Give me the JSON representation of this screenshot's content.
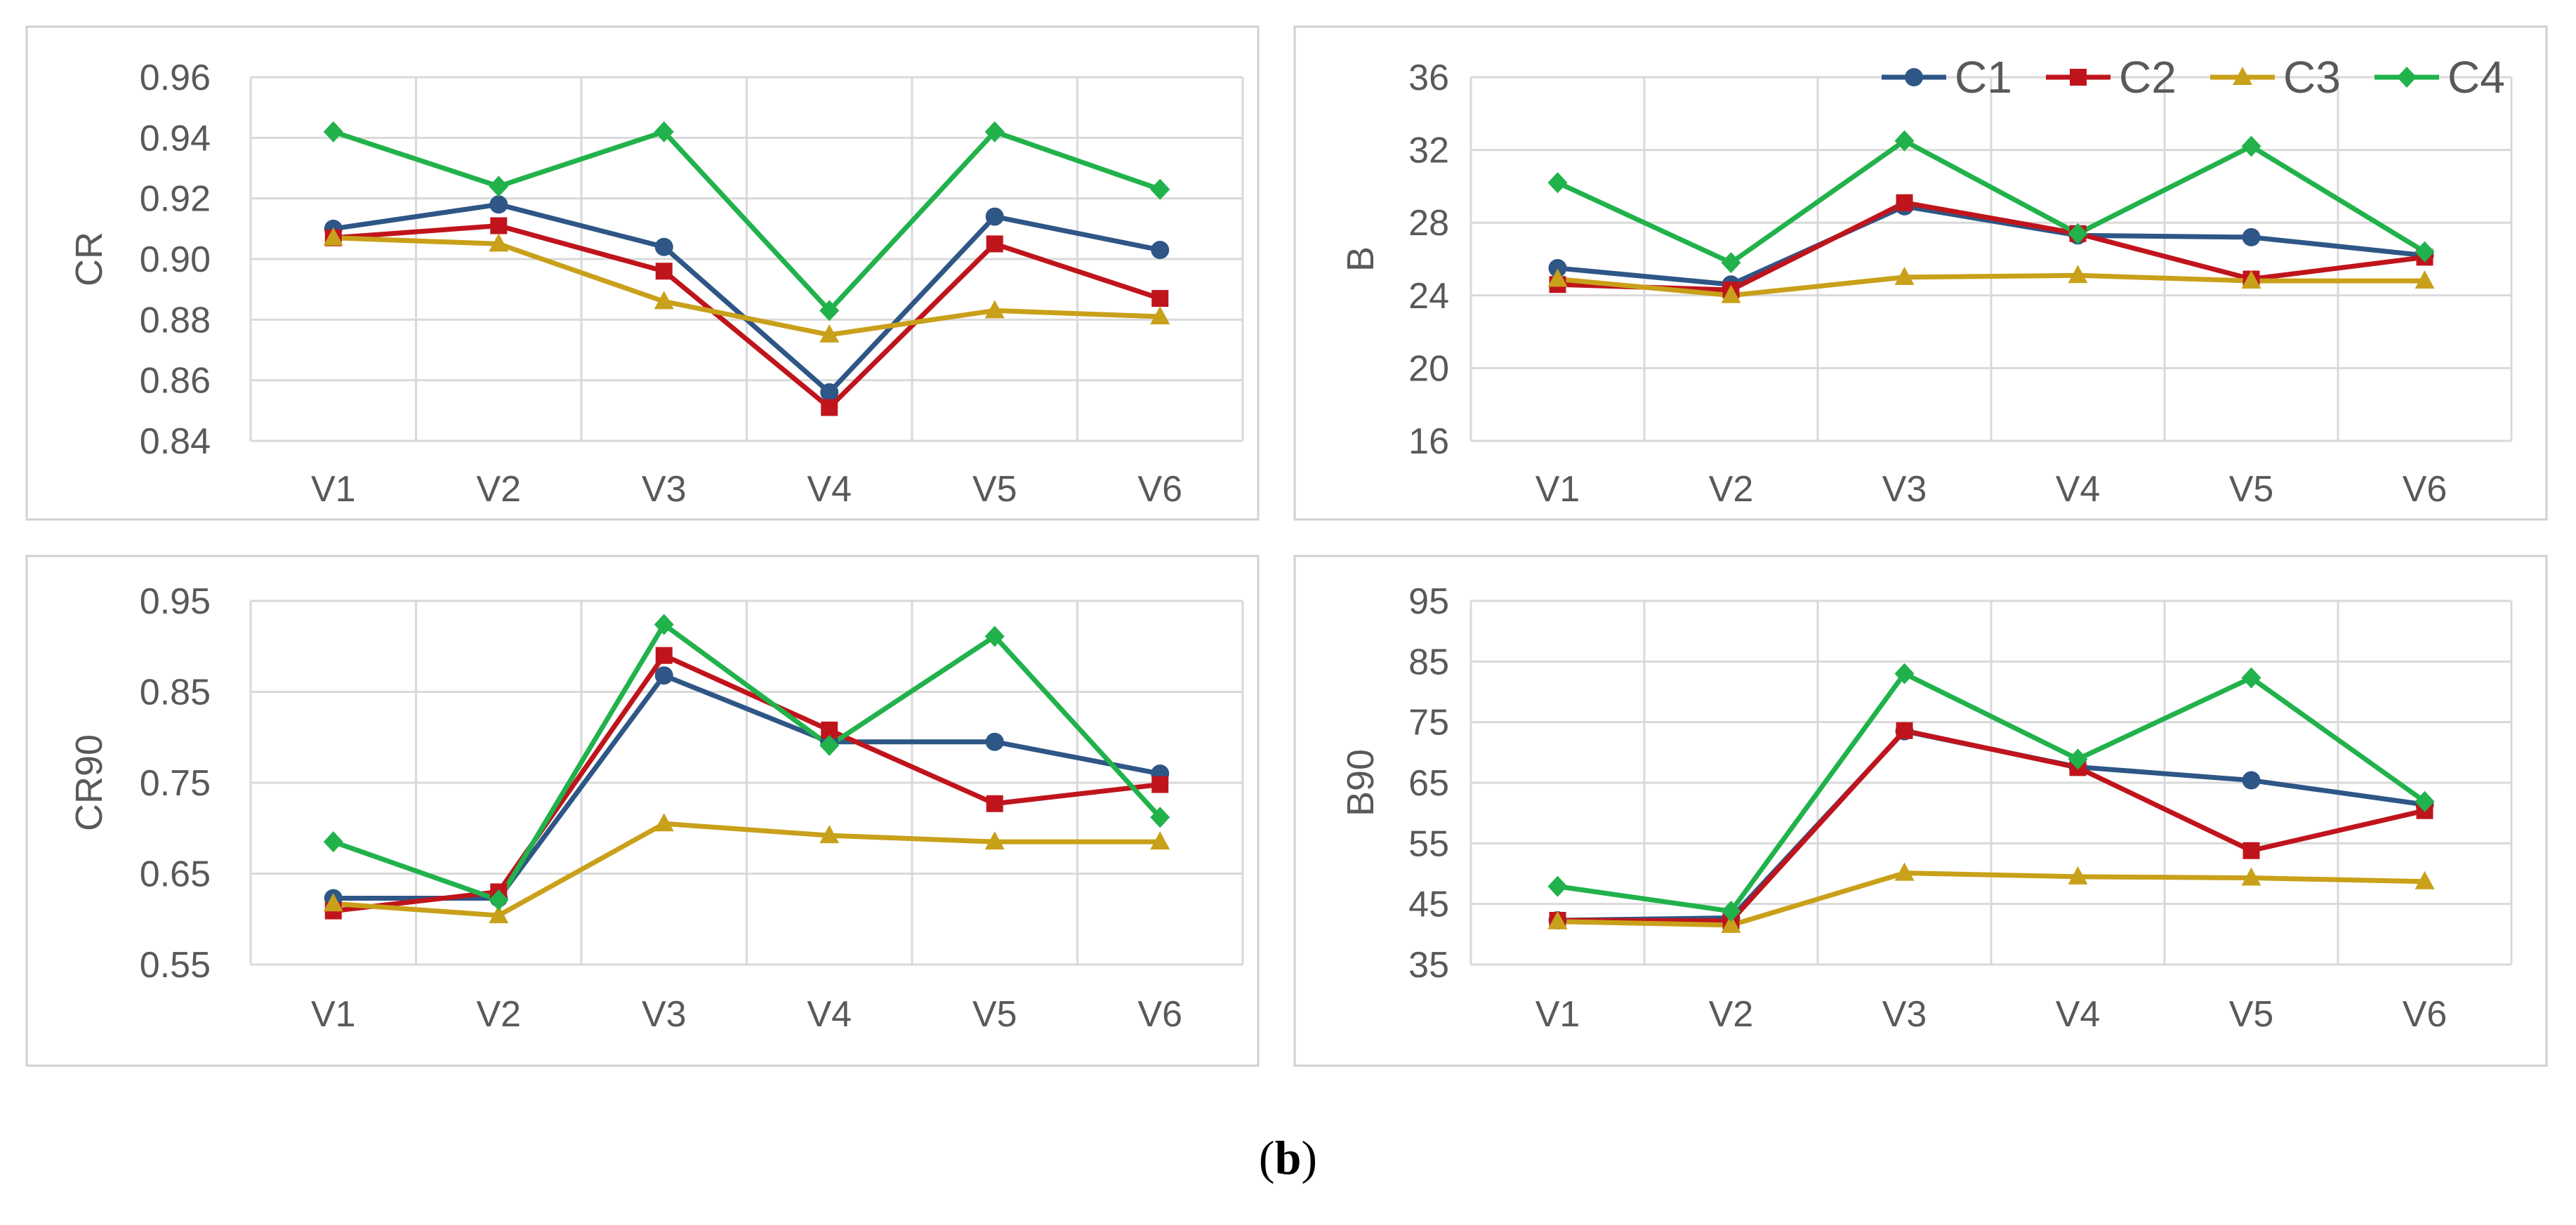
{
  "caption": {
    "open": "(",
    "letter": "b",
    "close": ")"
  },
  "legend": {
    "entries": [
      {
        "name": "C1",
        "color": "#2e5686",
        "marker": "circle"
      },
      {
        "name": "C2",
        "color": "#c0141c",
        "marker": "square"
      },
      {
        "name": "C3",
        "color": "#c9a01a",
        "marker": "triangle"
      },
      {
        "name": "C4",
        "color": "#21b24b",
        "marker": "diamond"
      }
    ]
  },
  "chart_data": [
    {
      "type": "line",
      "title": "",
      "xlabel": "",
      "ylabel": "CR",
      "categories": [
        "V1",
        "V2",
        "V3",
        "V4",
        "V5",
        "V6"
      ],
      "ylim": [
        0.84,
        0.96
      ],
      "yticks": [
        0.84,
        0.86,
        0.88,
        0.9,
        0.92,
        0.94,
        0.96
      ],
      "tick_decimals": 2,
      "grid": true,
      "legend_position": "none",
      "series": [
        {
          "name": "C1",
          "values": [
            0.91,
            0.918,
            0.904,
            0.856,
            0.914,
            0.903
          ]
        },
        {
          "name": "C2",
          "values": [
            0.907,
            0.911,
            0.896,
            0.851,
            0.905,
            0.887
          ]
        },
        {
          "name": "C3",
          "values": [
            0.907,
            0.905,
            0.886,
            0.875,
            0.883,
            0.881
          ]
        },
        {
          "name": "C4",
          "values": [
            0.942,
            0.924,
            0.942,
            0.883,
            0.942,
            0.923
          ]
        }
      ]
    },
    {
      "type": "line",
      "title": "",
      "xlabel": "",
      "ylabel": "B",
      "categories": [
        "V1",
        "V2",
        "V3",
        "V4",
        "V5",
        "V6"
      ],
      "ylim": [
        16,
        36
      ],
      "yticks": [
        16,
        20,
        24,
        28,
        32,
        36
      ],
      "tick_decimals": 0,
      "grid": true,
      "legend_position": "top",
      "series": [
        {
          "name": "C1",
          "values": [
            25.5,
            24.6,
            28.9,
            27.3,
            27.2,
            26.2
          ]
        },
        {
          "name": "C2",
          "values": [
            24.6,
            24.3,
            29.1,
            27.4,
            24.9,
            26.1
          ]
        },
        {
          "name": "C3",
          "values": [
            24.9,
            24.0,
            25.0,
            25.1,
            24.8,
            24.8
          ]
        },
        {
          "name": "C4",
          "values": [
            30.2,
            25.8,
            32.5,
            27.4,
            32.2,
            26.4
          ]
        }
      ]
    },
    {
      "type": "line",
      "title": "",
      "xlabel": "",
      "ylabel": "CR90",
      "categories": [
        "V1",
        "V2",
        "V3",
        "V4",
        "V5",
        "V6"
      ],
      "ylim": [
        0.55,
        0.95
      ],
      "yticks": [
        0.55,
        0.65,
        0.75,
        0.85,
        0.95
      ],
      "tick_decimals": 2,
      "grid": true,
      "legend_position": "none",
      "series": [
        {
          "name": "C1",
          "values": [
            0.623,
            0.623,
            0.868,
            0.795,
            0.795,
            0.76
          ]
        },
        {
          "name": "C2",
          "values": [
            0.609,
            0.63,
            0.89,
            0.808,
            0.727,
            0.748
          ]
        },
        {
          "name": "C3",
          "values": [
            0.617,
            0.604,
            0.705,
            0.692,
            0.685,
            0.685
          ]
        },
        {
          "name": "C4",
          "values": [
            0.685,
            0.621,
            0.924,
            0.791,
            0.911,
            0.712
          ]
        }
      ]
    },
    {
      "type": "line",
      "title": "",
      "xlabel": "",
      "ylabel": "B90",
      "categories": [
        "V1",
        "V2",
        "V3",
        "V4",
        "V5",
        "V6"
      ],
      "ylim": [
        35,
        95
      ],
      "yticks": [
        35,
        45,
        55,
        65,
        75,
        85,
        95
      ],
      "tick_decimals": 0,
      "grid": true,
      "legend_position": "none",
      "series": [
        {
          "name": "C1",
          "values": [
            42.3,
            42.7,
            73.5,
            67.6,
            65.4,
            61.4
          ]
        },
        {
          "name": "C2",
          "values": [
            42.3,
            42.2,
            73.6,
            67.5,
            53.8,
            60.4
          ]
        },
        {
          "name": "C3",
          "values": [
            42.1,
            41.5,
            50.1,
            49.5,
            49.3,
            48.7
          ]
        },
        {
          "name": "C4",
          "values": [
            47.9,
            43.8,
            83.0,
            68.9,
            82.3,
            61.9
          ]
        }
      ]
    }
  ]
}
